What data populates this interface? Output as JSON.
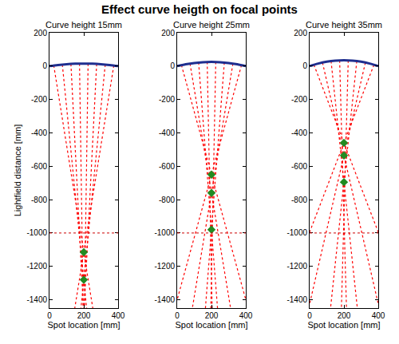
{
  "title": "Effect curve heigth on focal points",
  "chart_data": [
    {
      "type": "line",
      "title": "Curve height 15mm",
      "x_label": "Spot location [mm]",
      "y_label": "Lightfield distance [mm]",
      "xlim": [
        0,
        400
      ],
      "xticks": [
        0,
        200,
        400
      ],
      "ylim": [
        -1450,
        200
      ],
      "yticks": [
        -1400,
        -1200,
        -1000,
        -800,
        -600,
        -400,
        -200,
        0,
        200
      ],
      "grid": false,
      "curve": {
        "color": "#1f2f8f",
        "line_style": "solid",
        "x": [
          0,
          50,
          100,
          150,
          200,
          250,
          300,
          350,
          400
        ],
        "y": [
          0,
          6.6,
          11.3,
          14.1,
          15,
          14.1,
          11.3,
          6.6,
          0
        ]
      },
      "rays": {
        "color": "#ff0000",
        "line_style": "dot",
        "lines": [
          {
            "x": [
              25,
              252.4
            ],
            "y": [
              4,
              -1450
            ]
          },
          {
            "x": [
              375,
              147.6
            ],
            "y": [
              4,
              -1450
            ]
          },
          {
            "x": [
              75,
              216.5
            ],
            "y": [
              9,
              -1450
            ]
          },
          {
            "x": [
              325,
              183.5
            ],
            "y": [
              9,
              -1450
            ]
          },
          {
            "x": [
              125,
              197.5
            ],
            "y": [
              13,
              -1450
            ]
          },
          {
            "x": [
              275,
              202.5
            ],
            "y": [
              13,
              -1450
            ]
          },
          {
            "x": [
              175,
              196.4
            ],
            "y": [
              15,
              -1450
            ]
          },
          {
            "x": [
              225,
              203.6
            ],
            "y": [
              15,
              -1450
            ]
          }
        ]
      },
      "focal_points": {
        "color": "#228b22",
        "marker": "diamond",
        "x": [
          200,
          200
        ],
        "y": [
          -1115,
          -1280
        ]
      },
      "reference_line": {
        "color": "#cc0000",
        "line_style": "dot",
        "y": -1000
      }
    },
    {
      "type": "line",
      "title": "Curve height 25mm",
      "x_label": "Spot location [mm]",
      "xlim": [
        0,
        400
      ],
      "xticks": [
        0,
        200,
        400
      ],
      "ylim": [
        -1450,
        200
      ],
      "yticks": [
        -1400,
        -1200,
        -1000,
        -800,
        -600,
        -400,
        -200,
        0,
        200
      ],
      "grid": false,
      "curve": {
        "color": "#1f2f8f",
        "line_style": "solid",
        "x": [
          0,
          50,
          100,
          150,
          200,
          250,
          300,
          350,
          400
        ],
        "y": [
          0,
          10.9,
          18.8,
          23.4,
          25,
          23.4,
          18.8,
          10.9,
          0
        ]
      },
      "rays": {
        "color": "#ff0000",
        "line_style": "dot",
        "lines": [
          {
            "x": [
              25,
              413.4
            ],
            "y": [
              6,
              -1450
            ]
          },
          {
            "x": [
              375,
              -13.4
            ],
            "y": [
              6,
              -1450
            ]
          },
          {
            "x": [
              75,
              311.3
            ],
            "y": [
              15,
              -1450
            ]
          },
          {
            "x": [
              325,
              88.7
            ],
            "y": [
              15,
              -1450
            ]
          },
          {
            "x": [
              125,
              235.2
            ],
            "y": [
              22,
              -1450
            ]
          },
          {
            "x": [
              275,
              164.8
            ],
            "y": [
              22,
              -1450
            ]
          },
          {
            "x": [
              175,
              203.9
            ],
            "y": [
              25,
              -1450
            ]
          },
          {
            "x": [
              225,
              196.1
            ],
            "y": [
              25,
              -1450
            ]
          }
        ]
      },
      "focal_points": {
        "color": "#228b22",
        "marker": "diamond",
        "x": [
          200,
          200,
          200
        ],
        "y": [
          -650,
          -760,
          -980
        ]
      },
      "reference_line": {
        "color": "#cc0000",
        "line_style": "dot",
        "y": -1000
      }
    },
    {
      "type": "line",
      "title": "Curve height 35mm",
      "x_label": "Spot location [mm]",
      "xlim": [
        0,
        400
      ],
      "xticks": [
        0,
        200,
        400
      ],
      "ylim": [
        -1450,
        200
      ],
      "yticks": [
        -1400,
        -1200,
        -1000,
        -800,
        -600,
        -400,
        -200,
        0,
        200
      ],
      "grid": false,
      "curve": {
        "color": "#1f2f8f",
        "line_style": "solid",
        "x": [
          0,
          50,
          100,
          150,
          200,
          250,
          300,
          350,
          400
        ],
        "y": [
          0,
          15.3,
          26.3,
          32.8,
          35,
          32.8,
          26.3,
          15.3,
          0
        ]
      },
      "rays": {
        "color": "#ff0000",
        "line_style": "dot",
        "lines": [
          {
            "x": [
              25,
              570.2
            ],
            "y": [
              8,
              -1450
            ]
          },
          {
            "x": [
              375,
              -170.2
            ],
            "y": [
              8,
              -1450
            ]
          },
          {
            "x": [
              75,
              405.7
            ],
            "y": [
              21,
              -1450
            ]
          },
          {
            "x": [
              325,
              -5.7
            ],
            "y": [
              21,
              -1450
            ]
          },
          {
            "x": [
              125,
              278.1
            ],
            "y": [
              30,
              -1450
            ]
          },
          {
            "x": [
              275,
              121.9
            ],
            "y": [
              30,
              -1450
            ]
          },
          {
            "x": [
              175,
              214.7
            ],
            "y": [
              34,
              -1450
            ]
          },
          {
            "x": [
              225,
              185.3
            ],
            "y": [
              34,
              -1450
            ]
          }
        ]
      },
      "focal_points": {
        "color": "#228b22",
        "marker": "diamond",
        "x": [
          200,
          200,
          200
        ],
        "y": [
          -460,
          -535,
          -695
        ]
      },
      "reference_line": {
        "color": "#cc0000",
        "line_style": "dot",
        "y": -1000
      }
    }
  ]
}
